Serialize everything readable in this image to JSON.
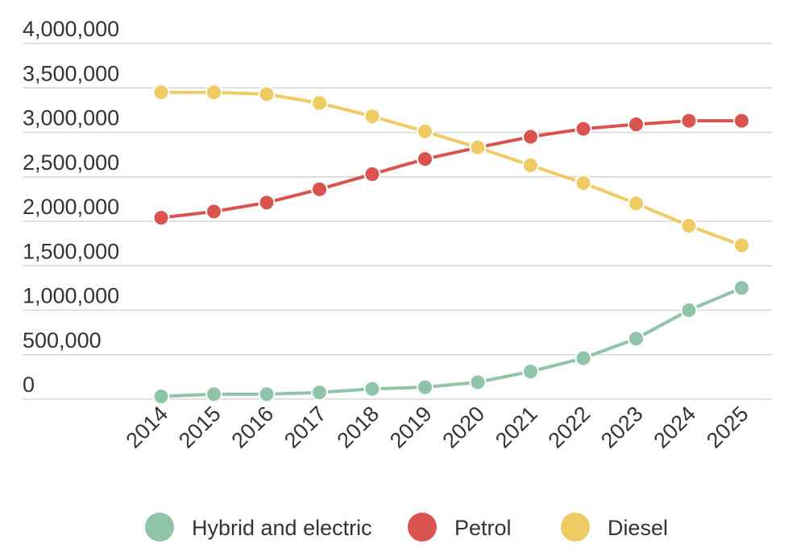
{
  "chart_data": {
    "type": "line",
    "title": "",
    "xlabel": "",
    "ylabel": "",
    "categories": [
      "2014",
      "2015",
      "2016",
      "2017",
      "2018",
      "2019",
      "2020",
      "2021",
      "2022",
      "2023",
      "2024",
      "2025"
    ],
    "ylim": [
      0,
      4000000
    ],
    "yticks": [
      "0",
      "500,000",
      "1,000,000",
      "1,500,000",
      "2,000,000",
      "2,500,000",
      "3,000,000",
      "3,500,000",
      "4,000,000"
    ],
    "grid": true,
    "legend_position": "bottom",
    "series": [
      {
        "name": "Hybrid and electric",
        "color": "#8fc4a8",
        "values": [
          30000,
          55000,
          55000,
          75000,
          115000,
          135000,
          190000,
          310000,
          460000,
          680000,
          1000000,
          1250000
        ]
      },
      {
        "name": "Petrol",
        "color": "#d9534f",
        "values": [
          2040000,
          2110000,
          2210000,
          2360000,
          2530000,
          2700000,
          2830000,
          2950000,
          3040000,
          3090000,
          3130000,
          3130000
        ]
      },
      {
        "name": "Diesel",
        "color": "#efcb63",
        "values": [
          3450000,
          3450000,
          3430000,
          3330000,
          3180000,
          3010000,
          2830000,
          2630000,
          2430000,
          2200000,
          1950000,
          1730000
        ]
      }
    ]
  }
}
